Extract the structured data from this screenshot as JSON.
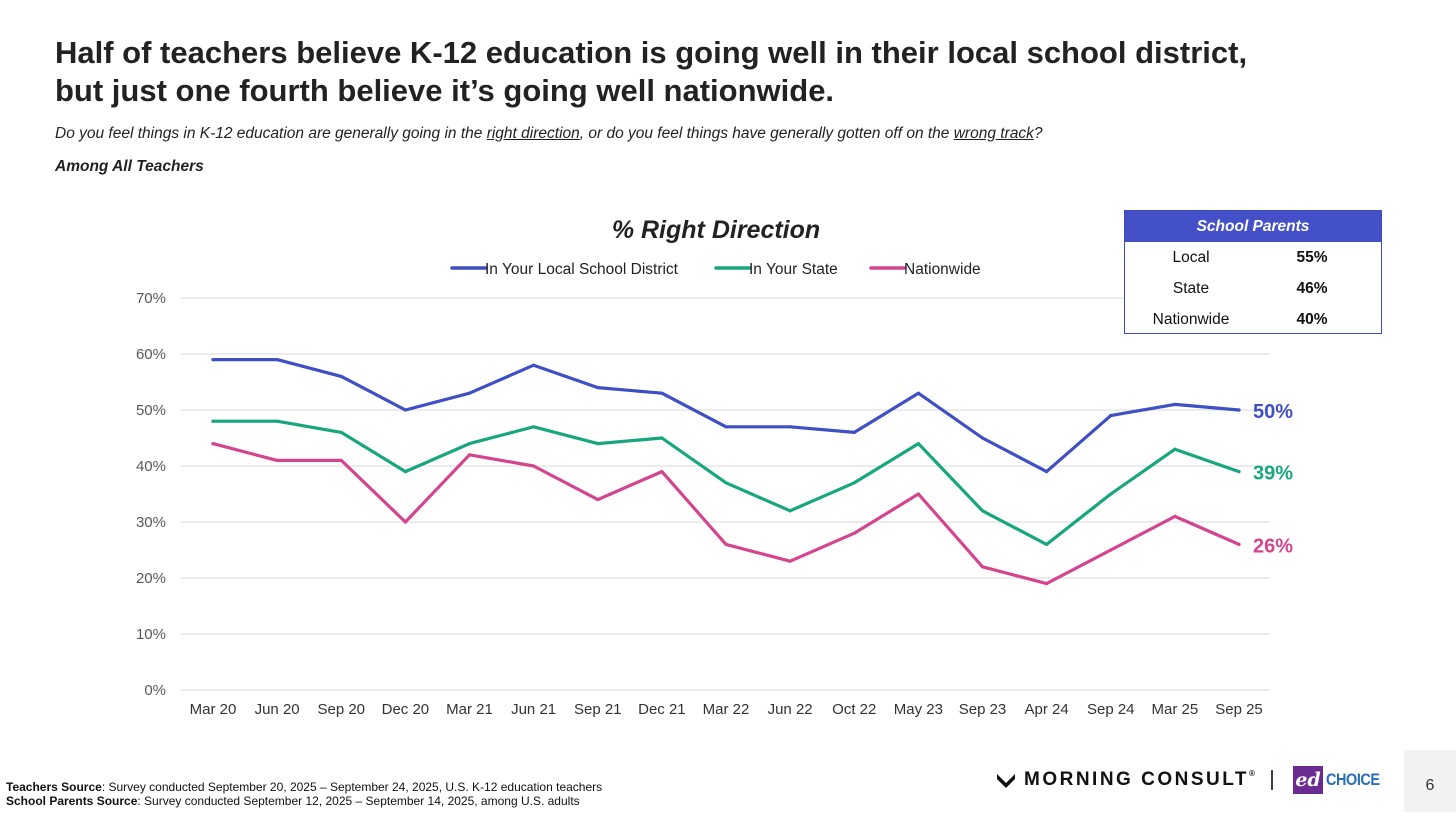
{
  "header": {
    "title_line1": "Half of teachers believe K-12 education is going well in their local school district,",
    "title_line2": "but just one fourth believe it’s going well nationwide.",
    "question_pre": "Do you feel things in K-12 education are generally going in the ",
    "question_right": "right direction",
    "question_mid": ", or do you feel things have generally gotten off on the ",
    "question_wrong": "wrong track",
    "question_post": "?",
    "base": "Among All Teachers"
  },
  "chart_data": {
    "type": "line",
    "title": "% Right Direction",
    "categories": [
      "Mar 20",
      "Jun 20",
      "Sep 20",
      "Dec 20",
      "Mar 21",
      "Jun 21",
      "Sep 21",
      "Dec 21",
      "Mar 22",
      "Jun 22",
      "Oct 22",
      "May 23",
      "Sep 23",
      "Apr 24",
      "Sep 24",
      "Mar 25",
      "Sep 25"
    ],
    "ylim": [
      0,
      70
    ],
    "yticks": [
      0,
      10,
      20,
      30,
      40,
      50,
      60,
      70
    ],
    "ytick_labels": [
      "0%",
      "10%",
      "20%",
      "30%",
      "40%",
      "50%",
      "60%",
      "70%"
    ],
    "grid": true,
    "legend": "top",
    "series": [
      {
        "name": "In Your Local School District",
        "color": "#3f4fc4",
        "values": [
          59,
          59,
          56,
          50,
          53,
          58,
          54,
          53,
          47,
          47,
          46,
          53,
          45,
          39,
          49,
          51,
          50
        ],
        "end_label": "50%"
      },
      {
        "name": "In Your State",
        "color": "#17a67e",
        "values": [
          48,
          48,
          46,
          39,
          44,
          47,
          44,
          45,
          37,
          32,
          37,
          44,
          32,
          26,
          35,
          43,
          39
        ],
        "end_label": "39%"
      },
      {
        "name": "Nationwide",
        "color": "#d4458f",
        "values": [
          44,
          41,
          41,
          30,
          42,
          40,
          34,
          39,
          26,
          23,
          28,
          35,
          22,
          19,
          25,
          31,
          26
        ],
        "end_label": "26%"
      }
    ]
  },
  "parents_box": {
    "header": "School Parents",
    "rows": [
      {
        "label": "Local",
        "value": "55%"
      },
      {
        "label": "State",
        "value": "46%"
      },
      {
        "label": "Nationwide",
        "value": "40%"
      }
    ]
  },
  "footer": {
    "teachers_label": "Teachers Source",
    "teachers_text": ": Survey conducted September 20, 2025 – September 24, 2025, U.S. K-12 education teachers",
    "parents_label": "School Parents Source",
    "parents_text": ": Survey conducted September 12, 2025 – September 14, 2025, among U.S. adults"
  },
  "branding": {
    "morning_consult": "MORNING CONSULT",
    "reg_mark": "®",
    "ed": "ed",
    "choice": "CHOICE"
  },
  "page_number": "6"
}
